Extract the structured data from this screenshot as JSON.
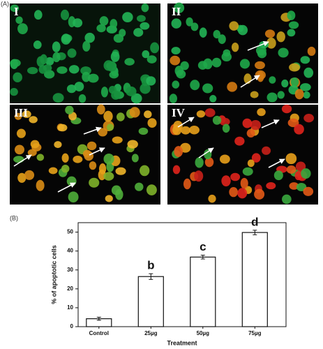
{
  "panel_a": {
    "label": "(A)",
    "images": [
      "I",
      "II",
      "III",
      "IV"
    ]
  },
  "chart_data": {
    "type": "bar",
    "panel_label": "(B)",
    "x_label": "Treatment",
    "y_label": "% of apoptotic cells",
    "categories": [
      "Control",
      "25µg",
      "50µg",
      "75µg"
    ],
    "values": [
      4.2,
      26.5,
      36.8,
      49.8
    ],
    "errors": [
      0.8,
      1.5,
      1.0,
      1.2
    ],
    "annotations": [
      null,
      "b",
      "c",
      "d"
    ],
    "color": "#ffffff",
    "ylim": [
      0,
      55
    ],
    "yticks": [
      0,
      10,
      20,
      30,
      40,
      50
    ]
  }
}
